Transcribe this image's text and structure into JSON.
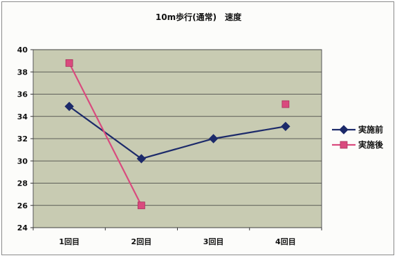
{
  "chart_data": {
    "type": "line",
    "title": "10m歩行(通常)　速度",
    "xlabel": "",
    "ylabel": "",
    "categories": [
      "1回目",
      "2回目",
      "3回目",
      "4回目"
    ],
    "ylim": [
      24,
      40
    ],
    "yticks": [
      24,
      26,
      28,
      30,
      32,
      34,
      36,
      38,
      40
    ],
    "grid": true,
    "legend_position": "right",
    "series": [
      {
        "name": "実施前",
        "values": [
          34.9,
          30.2,
          32.0,
          33.1
        ],
        "color": "#1c2a6a",
        "marker": "diamond"
      },
      {
        "name": "実施後",
        "values": [
          38.8,
          26.0,
          null,
          35.1
        ],
        "color": "#d94a7e",
        "marker": "square"
      }
    ],
    "plot_background": "#c8cbb2"
  }
}
